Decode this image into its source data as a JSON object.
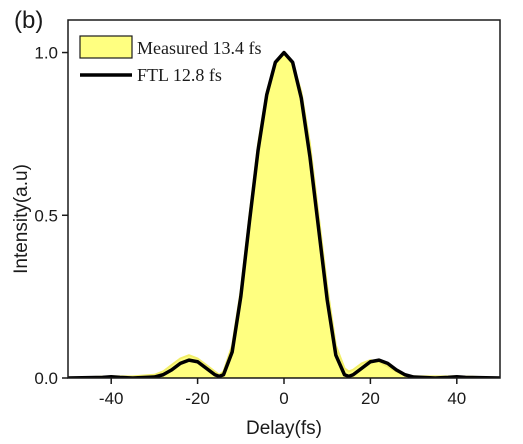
{
  "panel_label": "(b)",
  "chart_data": {
    "type": "line",
    "xlabel": "Delay(fs)",
    "ylabel": "Intensity(a.u)",
    "xlim": [
      -50,
      50
    ],
    "ylim": [
      0,
      1.1
    ],
    "xticks": [
      -40,
      -20,
      0,
      20,
      40
    ],
    "yticks": [
      0.0,
      0.5,
      1.0
    ],
    "xtick_labels": [
      "-40",
      "-20",
      "0",
      "20",
      "40"
    ],
    "ytick_labels": [
      "0.0",
      "0.5",
      "1.0"
    ],
    "legend_position": "top-left",
    "series": [
      {
        "name": "Measured 13.4 fs",
        "style": "filled-area",
        "color": "#FFFF80",
        "edge_color": "#F2EE6A",
        "x": [
          -50,
          -40,
          -35,
          -30,
          -28,
          -26,
          -24,
          -22,
          -20,
          -18,
          -16,
          -15,
          -14,
          -12,
          -10,
          -8,
          -6,
          -4,
          -2,
          0,
          2,
          4,
          6,
          8,
          10,
          12,
          14,
          15,
          16,
          18,
          20,
          22,
          24,
          26,
          28,
          30,
          35,
          40,
          45,
          50
        ],
        "y": [
          0.0,
          0.005,
          0.005,
          0.01,
          0.02,
          0.04,
          0.06,
          0.07,
          0.06,
          0.04,
          0.02,
          0.01,
          0.02,
          0.1,
          0.27,
          0.5,
          0.72,
          0.88,
          0.97,
          1.0,
          0.97,
          0.88,
          0.72,
          0.5,
          0.28,
          0.1,
          0.03,
          0.02,
          0.025,
          0.045,
          0.055,
          0.05,
          0.035,
          0.02,
          0.01,
          0.005,
          0.005,
          0.005,
          0.003,
          0.0
        ]
      },
      {
        "name": "FTL 12.8 fs",
        "style": "line",
        "color": "#000000",
        "x": [
          -50,
          -42,
          -40,
          -38,
          -35,
          -30,
          -28,
          -26,
          -24,
          -22,
          -20,
          -18,
          -16,
          -15,
          -14,
          -12,
          -10,
          -8,
          -6,
          -4,
          -2,
          0,
          2,
          4,
          6,
          8,
          10,
          12,
          14,
          15,
          16,
          18,
          20,
          22,
          24,
          26,
          28,
          30,
          35,
          38,
          40,
          42,
          50
        ],
        "y": [
          0.0,
          0.002,
          0.004,
          0.002,
          0.0,
          0.003,
          0.01,
          0.025,
          0.045,
          0.055,
          0.05,
          0.03,
          0.01,
          0.005,
          0.01,
          0.08,
          0.25,
          0.48,
          0.7,
          0.87,
          0.97,
          1.0,
          0.97,
          0.86,
          0.68,
          0.46,
          0.24,
          0.07,
          0.01,
          0.005,
          0.01,
          0.03,
          0.05,
          0.055,
          0.045,
          0.025,
          0.01,
          0.003,
          0.0,
          0.002,
          0.004,
          0.002,
          0.0
        ]
      }
    ]
  }
}
